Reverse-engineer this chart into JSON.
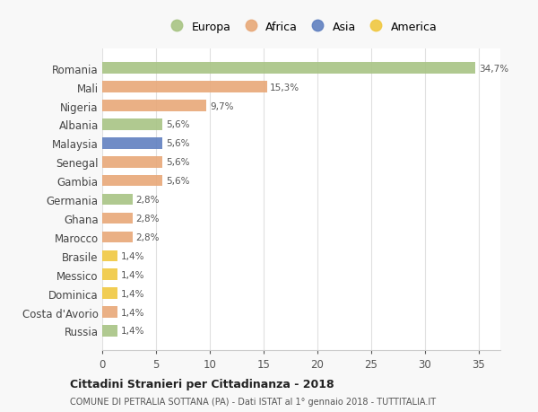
{
  "countries": [
    "Romania",
    "Mali",
    "Nigeria",
    "Albania",
    "Malaysia",
    "Senegal",
    "Gambia",
    "Germania",
    "Ghana",
    "Marocco",
    "Brasile",
    "Messico",
    "Dominica",
    "Costa d'Avorio",
    "Russia"
  ],
  "values": [
    34.7,
    15.3,
    9.7,
    5.6,
    5.6,
    5.6,
    5.6,
    2.8,
    2.8,
    2.8,
    1.4,
    1.4,
    1.4,
    1.4,
    1.4
  ],
  "labels": [
    "34,7%",
    "15,3%",
    "9,7%",
    "5,6%",
    "5,6%",
    "5,6%",
    "5,6%",
    "2,8%",
    "2,8%",
    "2,8%",
    "1,4%",
    "1,4%",
    "1,4%",
    "1,4%",
    "1,4%"
  ],
  "continent": [
    "Europa",
    "Africa",
    "Africa",
    "Europa",
    "Asia",
    "Africa",
    "Africa",
    "Europa",
    "Africa",
    "Africa",
    "America",
    "America",
    "America",
    "Africa",
    "Europa"
  ],
  "colors": {
    "Europa": "#a8c484",
    "Africa": "#e8a878",
    "Asia": "#6080c0",
    "America": "#f0c840"
  },
  "legend_order": [
    "Europa",
    "Africa",
    "Asia",
    "America"
  ],
  "title1": "Cittadini Stranieri per Cittadinanza - 2018",
  "title2": "COMUNE DI PETRALIA SOTTANA (PA) - Dati ISTAT al 1° gennaio 2018 - TUTTITALIA.IT",
  "xlim": [
    0,
    37
  ],
  "xticks": [
    0,
    5,
    10,
    15,
    20,
    25,
    30,
    35
  ],
  "bg_color": "#f8f8f8",
  "plot_bg_color": "#ffffff",
  "grid_color": "#e0e0e0"
}
